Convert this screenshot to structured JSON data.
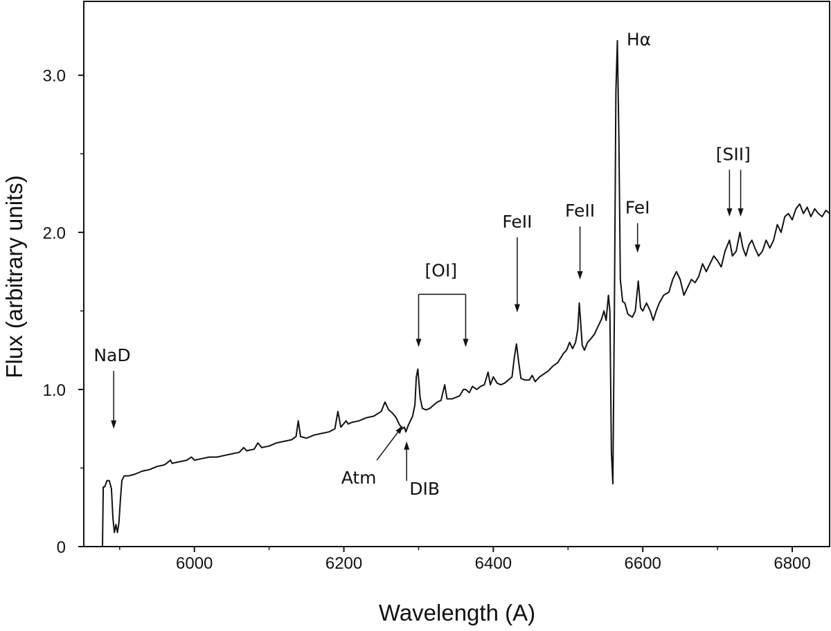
{
  "chart_data": {
    "type": "line",
    "xlabel": "Wavelength (A)",
    "ylabel": "Flux (arbitrary units)",
    "xlim": [
      5852,
      6850
    ],
    "ylim": [
      0,
      3.47
    ],
    "x_ticks": [
      6000,
      6200,
      6400,
      6600,
      6800
    ],
    "x_tick_labels": [
      "6000",
      "6200",
      "6400",
      "6600",
      "6800"
    ],
    "y_ticks": [
      0,
      1.0,
      2.0,
      3.0
    ],
    "y_tick_labels": [
      "0",
      "1.0",
      "2.0",
      "3.0"
    ],
    "grid": false,
    "series": [
      {
        "points": [
          [
            5877,
            0.0
          ],
          [
            5878,
            0.38
          ],
          [
            5880,
            0.38
          ],
          [
            5883,
            0.42
          ],
          [
            5886,
            0.42
          ],
          [
            5889,
            0.37
          ],
          [
            5891,
            0.18
          ],
          [
            5893,
            0.09
          ],
          [
            5895,
            0.14
          ],
          [
            5897,
            0.09
          ],
          [
            5899,
            0.15
          ],
          [
            5901,
            0.3
          ],
          [
            5903,
            0.42
          ],
          [
            5906,
            0.45
          ],
          [
            5912,
            0.45
          ],
          [
            5920,
            0.46
          ],
          [
            5930,
            0.48
          ],
          [
            5940,
            0.49
          ],
          [
            5950,
            0.51
          ],
          [
            5960,
            0.52
          ],
          [
            5968,
            0.55
          ],
          [
            5970,
            0.53
          ],
          [
            5980,
            0.54
          ],
          [
            5990,
            0.55
          ],
          [
            5996,
            0.57
          ],
          [
            6000,
            0.55
          ],
          [
            6010,
            0.56
          ],
          [
            6020,
            0.57
          ],
          [
            6030,
            0.57
          ],
          [
            6040,
            0.58
          ],
          [
            6050,
            0.59
          ],
          [
            6060,
            0.6
          ],
          [
            6066,
            0.63
          ],
          [
            6070,
            0.61
          ],
          [
            6080,
            0.62
          ],
          [
            6085,
            0.66
          ],
          [
            6090,
            0.63
          ],
          [
            6100,
            0.64
          ],
          [
            6110,
            0.66
          ],
          [
            6120,
            0.67
          ],
          [
            6130,
            0.68
          ],
          [
            6136,
            0.7
          ],
          [
            6139,
            0.8
          ],
          [
            6142,
            0.7
          ],
          [
            6150,
            0.69
          ],
          [
            6160,
            0.71
          ],
          [
            6170,
            0.72
          ],
          [
            6180,
            0.73
          ],
          [
            6188,
            0.75
          ],
          [
            6192,
            0.86
          ],
          [
            6196,
            0.76
          ],
          [
            6203,
            0.8
          ],
          [
            6206,
            0.78
          ],
          [
            6210,
            0.79
          ],
          [
            6220,
            0.8
          ],
          [
            6230,
            0.82
          ],
          [
            6240,
            0.83
          ],
          [
            6250,
            0.86
          ],
          [
            6255,
            0.92
          ],
          [
            6260,
            0.87
          ],
          [
            6265,
            0.85
          ],
          [
            6270,
            0.82
          ],
          [
            6274,
            0.78
          ],
          [
            6278,
            0.75
          ],
          [
            6281,
            0.76
          ],
          [
            6283,
            0.73
          ],
          [
            6286,
            0.77
          ],
          [
            6289,
            0.8
          ],
          [
            6292,
            0.83
          ],
          [
            6295,
            0.9
          ],
          [
            6297,
            1.08
          ],
          [
            6299,
            1.13
          ],
          [
            6302,
            0.95
          ],
          [
            6305,
            0.88
          ],
          [
            6310,
            0.87
          ],
          [
            6315,
            0.88
          ],
          [
            6320,
            0.9
          ],
          [
            6325,
            0.92
          ],
          [
            6330,
            0.93
          ],
          [
            6335,
            1.03
          ],
          [
            6338,
            0.94
          ],
          [
            6345,
            0.94
          ],
          [
            6350,
            0.95
          ],
          [
            6355,
            0.96
          ],
          [
            6360,
            1.0
          ],
          [
            6363,
            1.0
          ],
          [
            6368,
            0.98
          ],
          [
            6372,
            1.02
          ],
          [
            6378,
            1.0
          ],
          [
            6383,
            1.02
          ],
          [
            6388,
            1.03
          ],
          [
            6393,
            1.11
          ],
          [
            6396,
            1.03
          ],
          [
            6400,
            1.08
          ],
          [
            6405,
            1.04
          ],
          [
            6410,
            1.03
          ],
          [
            6415,
            1.04
          ],
          [
            6420,
            1.06
          ],
          [
            6425,
            1.08
          ],
          [
            6428,
            1.2
          ],
          [
            6431,
            1.29
          ],
          [
            6434,
            1.17
          ],
          [
            6437,
            1.07
          ],
          [
            6442,
            1.06
          ],
          [
            6448,
            1.06
          ],
          [
            6452,
            1.09
          ],
          [
            6456,
            1.05
          ],
          [
            6462,
            1.08
          ],
          [
            6468,
            1.1
          ],
          [
            6474,
            1.12
          ],
          [
            6480,
            1.15
          ],
          [
            6486,
            1.17
          ],
          [
            6490,
            1.2
          ],
          [
            6494,
            1.23
          ],
          [
            6498,
            1.25
          ],
          [
            6502,
            1.3
          ],
          [
            6506,
            1.26
          ],
          [
            6510,
            1.3
          ],
          [
            6513,
            1.38
          ],
          [
            6515,
            1.55
          ],
          [
            6517,
            1.42
          ],
          [
            6519,
            1.28
          ],
          [
            6522,
            1.25
          ],
          [
            6526,
            1.3
          ],
          [
            6530,
            1.32
          ],
          [
            6535,
            1.35
          ],
          [
            6540,
            1.4
          ],
          [
            6545,
            1.45
          ],
          [
            6548,
            1.5
          ],
          [
            6551,
            1.44
          ],
          [
            6554,
            1.6
          ],
          [
            6556,
            1.5
          ],
          [
            6558,
            0.6
          ],
          [
            6560,
            0.4
          ],
          [
            6562,
            1.5
          ],
          [
            6564,
            2.9
          ],
          [
            6566,
            3.22
          ],
          [
            6568,
            2.6
          ],
          [
            6570,
            1.7
          ],
          [
            6573,
            1.56
          ],
          [
            6576,
            1.55
          ],
          [
            6580,
            1.48
          ],
          [
            6586,
            1.46
          ],
          [
            6590,
            1.5
          ],
          [
            6594,
            1.69
          ],
          [
            6597,
            1.52
          ],
          [
            6600,
            1.5
          ],
          [
            6605,
            1.55
          ],
          [
            6610,
            1.5
          ],
          [
            6614,
            1.44
          ],
          [
            6618,
            1.5
          ],
          [
            6622,
            1.55
          ],
          [
            6628,
            1.6
          ],
          [
            6635,
            1.62
          ],
          [
            6640,
            1.7
          ],
          [
            6645,
            1.75
          ],
          [
            6650,
            1.7
          ],
          [
            6655,
            1.6
          ],
          [
            6660,
            1.65
          ],
          [
            6665,
            1.7
          ],
          [
            6670,
            1.68
          ],
          [
            6675,
            1.72
          ],
          [
            6680,
            1.8
          ],
          [
            6685,
            1.75
          ],
          [
            6690,
            1.8
          ],
          [
            6695,
            1.85
          ],
          [
            6700,
            1.82
          ],
          [
            6705,
            1.78
          ],
          [
            6710,
            1.88
          ],
          [
            6716,
            1.95
          ],
          [
            6720,
            1.85
          ],
          [
            6725,
            1.88
          ],
          [
            6730,
            2.0
          ],
          [
            6734,
            1.9
          ],
          [
            6738,
            1.85
          ],
          [
            6742,
            1.92
          ],
          [
            6746,
            1.95
          ],
          [
            6750,
            1.9
          ],
          [
            6755,
            1.85
          ],
          [
            6760,
            1.88
          ],
          [
            6765,
            1.95
          ],
          [
            6770,
            1.9
          ],
          [
            6775,
            1.95
          ],
          [
            6780,
            2.05
          ],
          [
            6785,
            2.0
          ],
          [
            6790,
            2.1
          ],
          [
            6795,
            2.12
          ],
          [
            6800,
            2.08
          ],
          [
            6805,
            2.15
          ],
          [
            6810,
            2.18
          ],
          [
            6815,
            2.12
          ],
          [
            6820,
            2.16
          ],
          [
            6825,
            2.1
          ],
          [
            6830,
            2.15
          ],
          [
            6835,
            2.12
          ],
          [
            6840,
            2.1
          ],
          [
            6845,
            2.14
          ],
          [
            6850,
            2.12
          ]
        ]
      }
    ],
    "annotations": [
      {
        "text": "NaD",
        "x": 5892,
        "y": 0.75,
        "label_x": 5890,
        "label_y": 1.18
      },
      {
        "text": "[OI]",
        "x": [
          6300,
          6363
        ],
        "y": 1.27,
        "label_x": 6330,
        "label_y": 1.72
      },
      {
        "text": "FeII",
        "x": 6432,
        "y": 1.49,
        "label_x": 6432,
        "label_y": 2.03
      },
      {
        "text": "FeII",
        "x": 6516,
        "y": 1.7,
        "label_x": 6516,
        "label_y": 2.1
      },
      {
        "text": "Hα",
        "x": 6566,
        "y": 3.22,
        "label_x": 6591,
        "label_y": 3.2
      },
      {
        "text": "FeI",
        "x": 6593,
        "y": 1.87,
        "label_x": 6593,
        "label_y": 2.12
      },
      {
        "text": "[SII]",
        "x": [
          6716,
          6731
        ],
        "y": 2.1,
        "label_x": 6721,
        "label_y": 2.46
      },
      {
        "text": "Atm",
        "x": 6279,
        "y": 0.77,
        "label_x": 6220,
        "label_y": 0.4
      },
      {
        "text": "DIB",
        "x": 6284,
        "y": 0.67,
        "label_x": 6308,
        "label_y": 0.33
      }
    ]
  }
}
